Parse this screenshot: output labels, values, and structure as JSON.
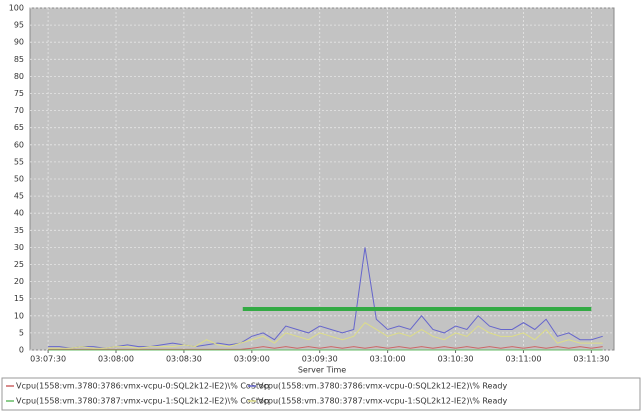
{
  "chart_data": {
    "type": "line",
    "x_label": "Server Time",
    "x": [
      "03:07:30",
      "03:07:35",
      "03:07:40",
      "03:07:45",
      "03:07:50",
      "03:07:55",
      "03:08:00",
      "03:08:05",
      "03:08:10",
      "03:08:15",
      "03:08:20",
      "03:08:25",
      "03:08:30",
      "03:08:35",
      "03:08:40",
      "03:08:45",
      "03:08:50",
      "03:08:55",
      "03:09:00",
      "03:09:05",
      "03:09:10",
      "03:09:15",
      "03:09:20",
      "03:09:25",
      "03:09:30",
      "03:09:35",
      "03:09:40",
      "03:09:45",
      "03:09:50",
      "03:09:55",
      "03:10:00",
      "03:10:05",
      "03:10:10",
      "03:10:15",
      "03:10:20",
      "03:10:25",
      "03:10:30",
      "03:10:35",
      "03:10:40",
      "03:10:45",
      "03:10:50",
      "03:10:55",
      "03:11:00",
      "03:11:05",
      "03:11:10",
      "03:11:15",
      "03:11:20",
      "03:11:25",
      "03:11:30",
      "03:11:35"
    ],
    "series": [
      {
        "name": "Vcpu(1558:vm.3780:3786:vmx-vcpu-0:SQL2k12-IE2)\\% CoStop",
        "color": "#cc6666",
        "values": [
          0.2,
          0.2,
          0.2,
          0.2,
          0.2,
          0.2,
          0.2,
          0.2,
          0.2,
          0.2,
          0.2,
          0.2,
          0.2,
          0.2,
          0.2,
          0.2,
          0.2,
          0.2,
          0.5,
          1,
          0.5,
          1,
          0.5,
          1,
          0.5,
          1,
          0.5,
          1,
          0.5,
          1,
          0.5,
          1,
          0.5,
          1,
          0.5,
          1,
          0.5,
          1,
          0.5,
          1,
          0.5,
          1,
          0.5,
          1,
          0.5,
          1,
          0.5,
          1,
          0.5,
          1
        ]
      },
      {
        "name": "Vcpu(1558:vm.3780:3786:vmx-vcpu-0:SQL2k12-IE2)\\% Ready",
        "color": "#6666cc",
        "values": [
          1,
          1,
          0.5,
          1,
          1,
          0.5,
          1,
          1.5,
          1,
          1,
          1.5,
          2,
          1.5,
          1,
          1.5,
          2,
          1.5,
          2,
          4,
          5,
          3,
          7,
          6,
          5,
          7,
          6,
          5,
          6,
          30,
          9,
          6,
          7,
          6,
          10,
          6,
          5,
          7,
          6,
          10,
          7,
          6,
          6,
          8,
          6,
          9,
          4,
          5,
          3,
          3,
          4
        ]
      },
      {
        "name": "Vcpu(1558:vm.3780:3787:vmx-vcpu-1:SQL2k12-IE2)\\% CoStop",
        "color": "#66bb66",
        "values": [
          0,
          0,
          0,
          0,
          0,
          0,
          0,
          0,
          0,
          0,
          0,
          0,
          0,
          0,
          0,
          0,
          0,
          0,
          0,
          0,
          0,
          0,
          0,
          0,
          0,
          0,
          0,
          0,
          0,
          0,
          0,
          0,
          0,
          0,
          0,
          0,
          0,
          0,
          0,
          0,
          0,
          0,
          0,
          0,
          0,
          0,
          0,
          0,
          0,
          0
        ]
      },
      {
        "name": "Vcpu(1558:vm.3780:3787:vmx-vcpu-1:SQL2k12-IE2)\\% Ready",
        "color": "#dddd88",
        "values": [
          0.5,
          0.5,
          0.5,
          1,
          0.5,
          0.5,
          1,
          1,
          0.5,
          1,
          1,
          1,
          1.5,
          1,
          3,
          1.5,
          1,
          2,
          3,
          4,
          2,
          5,
          4,
          3,
          5,
          4,
          3,
          4,
          8,
          6,
          4,
          5,
          4,
          6,
          4,
          3,
          5,
          4,
          7,
          5,
          4,
          4,
          5,
          3,
          6,
          2,
          3,
          2,
          2,
          2
        ]
      }
    ],
    "reference_line": {
      "y": 12,
      "from": "03:08:56",
      "to": "03:11:30",
      "color": "#33aa44"
    },
    "xlim": [
      "03:07:22",
      "03:11:40"
    ],
    "xticks": [
      "03:07:30",
      "03:08:00",
      "03:08:30",
      "03:09:00",
      "03:09:30",
      "03:10:00",
      "03:10:30",
      "03:11:00",
      "03:11:30"
    ],
    "ylim": [
      0,
      100
    ],
    "yticks": [
      0,
      5,
      10,
      15,
      20,
      25,
      30,
      35,
      40,
      45,
      50,
      55,
      60,
      65,
      70,
      75,
      80,
      85,
      90,
      95,
      100
    ],
    "grid": true,
    "legend": "bottom"
  }
}
